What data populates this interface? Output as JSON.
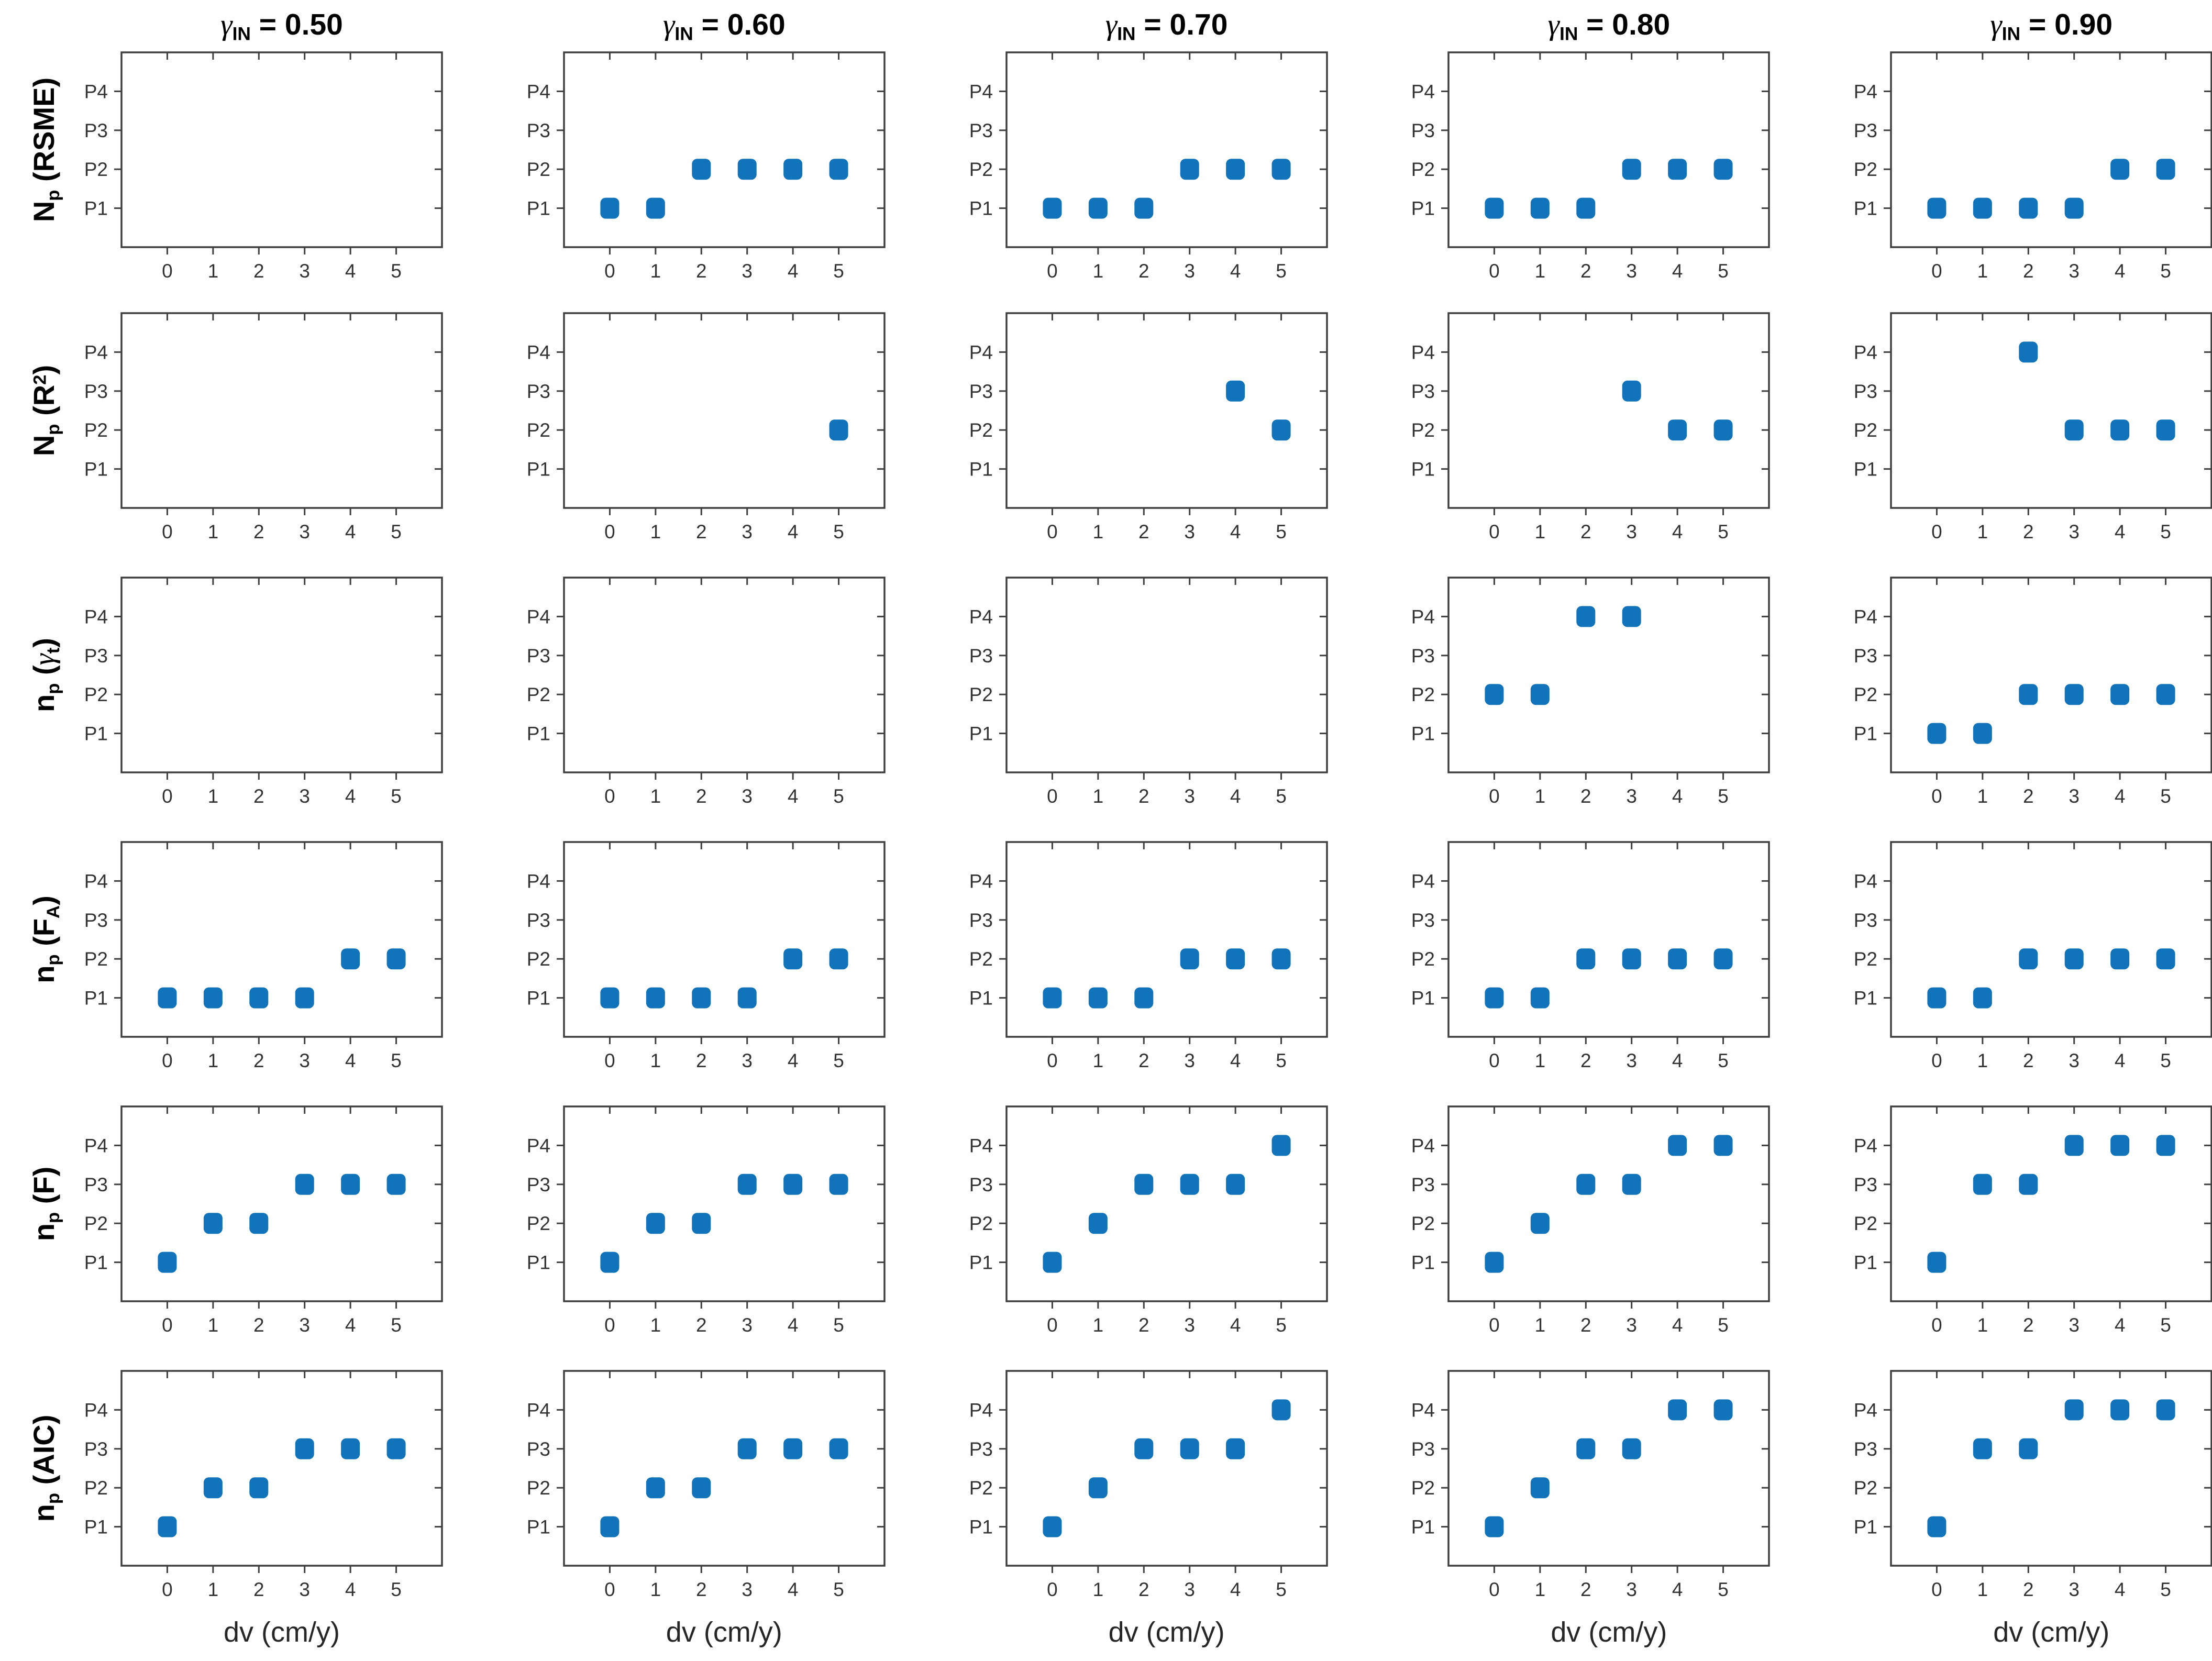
{
  "figure": {
    "marker_color": "#1173B9",
    "axis_color": "#3F3F3F",
    "tick_text_color": "#333333",
    "title_text_color": "#000000",
    "xlabel": "dv (cm/y)",
    "xticks": [
      "0",
      "1",
      "2",
      "3",
      "4",
      "5"
    ],
    "yticks": [
      "P1",
      "P2",
      "P3",
      "P4"
    ],
    "xlim": [
      -1,
      6
    ],
    "ylim": [
      0,
      5
    ],
    "column_titles": [
      {
        "plain": "γ_IN = 0.50",
        "segments": [
          {
            "t": "γ",
            "s": "greek"
          },
          {
            "t": "IN",
            "s": "sub"
          },
          {
            "t": " = 0.50"
          }
        ]
      },
      {
        "plain": "γ_IN = 0.60",
        "segments": [
          {
            "t": "γ",
            "s": "greek"
          },
          {
            "t": "IN",
            "s": "sub"
          },
          {
            "t": " = 0.60"
          }
        ]
      },
      {
        "plain": "γ_IN = 0.70",
        "segments": [
          {
            "t": "γ",
            "s": "greek"
          },
          {
            "t": "IN",
            "s": "sub"
          },
          {
            "t": " = 0.70"
          }
        ]
      },
      {
        "plain": "γ_IN = 0.80",
        "segments": [
          {
            "t": "γ",
            "s": "greek"
          },
          {
            "t": "IN",
            "s": "sub"
          },
          {
            "t": " = 0.80"
          }
        ]
      },
      {
        "plain": "γ_IN = 0.90",
        "segments": [
          {
            "t": "γ",
            "s": "greek"
          },
          {
            "t": "IN",
            "s": "sub"
          },
          {
            "t": " = 0.90"
          }
        ]
      }
    ],
    "row_labels": [
      {
        "plain": "N_p (RSME)",
        "segments": [
          {
            "t": "N"
          },
          {
            "t": "p",
            "s": "sub"
          },
          {
            "t": " (RSME)"
          }
        ]
      },
      {
        "plain": "N_p (R^2)",
        "segments": [
          {
            "t": "N"
          },
          {
            "t": "p",
            "s": "sub"
          },
          {
            "t": " (R"
          },
          {
            "t": "2",
            "s": "sup"
          },
          {
            "t": ")"
          }
        ]
      },
      {
        "plain": "n_p (γ_t)",
        "segments": [
          {
            "t": "n"
          },
          {
            "t": "p",
            "s": "sub"
          },
          {
            "t": " ("
          },
          {
            "t": "γ",
            "s": "greek"
          },
          {
            "t": "t",
            "s": "sub"
          },
          {
            "t": ")"
          }
        ]
      },
      {
        "plain": "n_p (F_A)",
        "segments": [
          {
            "t": "n"
          },
          {
            "t": "p",
            "s": "sub"
          },
          {
            "t": " (F"
          },
          {
            "t": "A",
            "s": "sub"
          },
          {
            "t": ")"
          }
        ]
      },
      {
        "plain": "n_p (F)",
        "segments": [
          {
            "t": "n"
          },
          {
            "t": "p",
            "s": "sub"
          },
          {
            "t": " (F)"
          }
        ]
      },
      {
        "plain": "n_p (AIC)",
        "segments": [
          {
            "t": "n"
          },
          {
            "t": "p",
            "s": "sub"
          },
          {
            "t": " (AIC)"
          }
        ]
      }
    ]
  },
  "chart_data": [
    {
      "type": "scatter",
      "row": 0,
      "col": 0,
      "row_label": "N_p (RSME)",
      "col_title": "γ_IN = 0.50",
      "x": [],
      "y": []
    },
    {
      "type": "scatter",
      "row": 0,
      "col": 1,
      "row_label": "N_p (RSME)",
      "col_title": "γ_IN = 0.60",
      "x": [
        0,
        1,
        2,
        3,
        4,
        5
      ],
      "y": [
        1,
        1,
        2,
        2,
        2,
        2
      ]
    },
    {
      "type": "scatter",
      "row": 0,
      "col": 2,
      "row_label": "N_p (RSME)",
      "col_title": "γ_IN = 0.70",
      "x": [
        0,
        1,
        2,
        3,
        4,
        5
      ],
      "y": [
        1,
        1,
        1,
        2,
        2,
        2
      ]
    },
    {
      "type": "scatter",
      "row": 0,
      "col": 3,
      "row_label": "N_p (RSME)",
      "col_title": "γ_IN = 0.80",
      "x": [
        0,
        1,
        2,
        3,
        4,
        5
      ],
      "y": [
        1,
        1,
        1,
        2,
        2,
        2
      ]
    },
    {
      "type": "scatter",
      "row": 0,
      "col": 4,
      "row_label": "N_p (RSME)",
      "col_title": "γ_IN = 0.90",
      "x": [
        0,
        1,
        2,
        3,
        4,
        5
      ],
      "y": [
        1,
        1,
        1,
        1,
        2,
        2
      ]
    },
    {
      "type": "scatter",
      "row": 1,
      "col": 0,
      "row_label": "N_p (R^2)",
      "col_title": "γ_IN = 0.50",
      "x": [],
      "y": []
    },
    {
      "type": "scatter",
      "row": 1,
      "col": 1,
      "row_label": "N_p (R^2)",
      "col_title": "γ_IN = 0.60",
      "x": [
        5
      ],
      "y": [
        2
      ]
    },
    {
      "type": "scatter",
      "row": 1,
      "col": 2,
      "row_label": "N_p (R^2)",
      "col_title": "γ_IN = 0.70",
      "x": [
        4,
        5
      ],
      "y": [
        3,
        2
      ]
    },
    {
      "type": "scatter",
      "row": 1,
      "col": 3,
      "row_label": "N_p (R^2)",
      "col_title": "γ_IN = 0.80",
      "x": [
        3,
        4,
        5
      ],
      "y": [
        3,
        2,
        2
      ]
    },
    {
      "type": "scatter",
      "row": 1,
      "col": 4,
      "row_label": "N_p (R^2)",
      "col_title": "γ_IN = 0.90",
      "x": [
        2,
        3,
        4,
        5
      ],
      "y": [
        4,
        2,
        2,
        2
      ]
    },
    {
      "type": "scatter",
      "row": 2,
      "col": 0,
      "row_label": "n_p (γ_t)",
      "col_title": "γ_IN = 0.50",
      "x": [],
      "y": []
    },
    {
      "type": "scatter",
      "row": 2,
      "col": 1,
      "row_label": "n_p (γ_t)",
      "col_title": "γ_IN = 0.60",
      "x": [],
      "y": []
    },
    {
      "type": "scatter",
      "row": 2,
      "col": 2,
      "row_label": "n_p (γ_t)",
      "col_title": "γ_IN = 0.70",
      "x": [],
      "y": []
    },
    {
      "type": "scatter",
      "row": 2,
      "col": 3,
      "row_label": "n_p (γ_t)",
      "col_title": "γ_IN = 0.80",
      "x": [
        0,
        1,
        2,
        3
      ],
      "y": [
        2,
        2,
        4,
        4
      ]
    },
    {
      "type": "scatter",
      "row": 2,
      "col": 4,
      "row_label": "n_p (γ_t)",
      "col_title": "γ_IN = 0.90",
      "x": [
        0,
        1,
        2,
        3,
        4,
        5
      ],
      "y": [
        1,
        1,
        2,
        2,
        2,
        2
      ]
    },
    {
      "type": "scatter",
      "row": 3,
      "col": 0,
      "row_label": "n_p (F_A)",
      "col_title": "γ_IN = 0.50",
      "x": [
        0,
        1,
        2,
        3,
        4,
        5
      ],
      "y": [
        1,
        1,
        1,
        1,
        2,
        2
      ]
    },
    {
      "type": "scatter",
      "row": 3,
      "col": 1,
      "row_label": "n_p (F_A)",
      "col_title": "γ_IN = 0.60",
      "x": [
        0,
        1,
        2,
        3,
        4,
        5
      ],
      "y": [
        1,
        1,
        1,
        1,
        2,
        2
      ]
    },
    {
      "type": "scatter",
      "row": 3,
      "col": 2,
      "row_label": "n_p (F_A)",
      "col_title": "γ_IN = 0.70",
      "x": [
        0,
        1,
        2,
        3,
        4,
        5
      ],
      "y": [
        1,
        1,
        1,
        2,
        2,
        2
      ]
    },
    {
      "type": "scatter",
      "row": 3,
      "col": 3,
      "row_label": "n_p (F_A)",
      "col_title": "γ_IN = 0.80",
      "x": [
        0,
        1,
        2,
        3,
        4,
        5
      ],
      "y": [
        1,
        1,
        2,
        2,
        2,
        2
      ]
    },
    {
      "type": "scatter",
      "row": 3,
      "col": 4,
      "row_label": "n_p (F_A)",
      "col_title": "γ_IN = 0.90",
      "x": [
        0,
        1,
        2,
        3,
        4,
        5
      ],
      "y": [
        1,
        1,
        2,
        2,
        2,
        2
      ]
    },
    {
      "type": "scatter",
      "row": 4,
      "col": 0,
      "row_label": "n_p (F)",
      "col_title": "γ_IN = 0.50",
      "x": [
        0,
        1,
        2,
        3,
        4,
        5
      ],
      "y": [
        1,
        2,
        2,
        3,
        3,
        3
      ]
    },
    {
      "type": "scatter",
      "row": 4,
      "col": 1,
      "row_label": "n_p (F)",
      "col_title": "γ_IN = 0.60",
      "x": [
        0,
        1,
        2,
        3,
        4,
        5
      ],
      "y": [
        1,
        2,
        2,
        3,
        3,
        3
      ]
    },
    {
      "type": "scatter",
      "row": 4,
      "col": 2,
      "row_label": "n_p (F)",
      "col_title": "γ_IN = 0.70",
      "x": [
        0,
        1,
        2,
        3,
        4,
        5
      ],
      "y": [
        1,
        2,
        3,
        3,
        3,
        4
      ]
    },
    {
      "type": "scatter",
      "row": 4,
      "col": 3,
      "row_label": "n_p (F)",
      "col_title": "γ_IN = 0.80",
      "x": [
        0,
        1,
        2,
        3,
        4,
        5
      ],
      "y": [
        1,
        2,
        3,
        3,
        4,
        4
      ]
    },
    {
      "type": "scatter",
      "row": 4,
      "col": 4,
      "row_label": "n_p (F)",
      "col_title": "γ_IN = 0.90",
      "x": [
        0,
        1,
        2,
        3,
        4,
        5
      ],
      "y": [
        1,
        3,
        3,
        4,
        4,
        4
      ]
    },
    {
      "type": "scatter",
      "row": 5,
      "col": 0,
      "row_label": "n_p (AIC)",
      "col_title": "γ_IN = 0.50",
      "x": [
        0,
        1,
        2,
        3,
        4,
        5
      ],
      "y": [
        1,
        2,
        2,
        3,
        3,
        3
      ]
    },
    {
      "type": "scatter",
      "row": 5,
      "col": 1,
      "row_label": "n_p (AIC)",
      "col_title": "γ_IN = 0.60",
      "x": [
        0,
        1,
        2,
        3,
        4,
        5
      ],
      "y": [
        1,
        2,
        2,
        3,
        3,
        3
      ]
    },
    {
      "type": "scatter",
      "row": 5,
      "col": 2,
      "row_label": "n_p (AIC)",
      "col_title": "γ_IN = 0.70",
      "x": [
        0,
        1,
        2,
        3,
        4,
        5
      ],
      "y": [
        1,
        2,
        3,
        3,
        3,
        4
      ]
    },
    {
      "type": "scatter",
      "row": 5,
      "col": 3,
      "row_label": "n_p (AIC)",
      "col_title": "γ_IN = 0.80",
      "x": [
        0,
        1,
        2,
        3,
        4,
        5
      ],
      "y": [
        1,
        2,
        3,
        3,
        4,
        4
      ]
    },
    {
      "type": "scatter",
      "row": 5,
      "col": 4,
      "row_label": "n_p (AIC)",
      "col_title": "γ_IN = 0.90",
      "x": [
        0,
        1,
        2,
        3,
        4,
        5
      ],
      "y": [
        1,
        3,
        3,
        4,
        4,
        4
      ]
    }
  ]
}
